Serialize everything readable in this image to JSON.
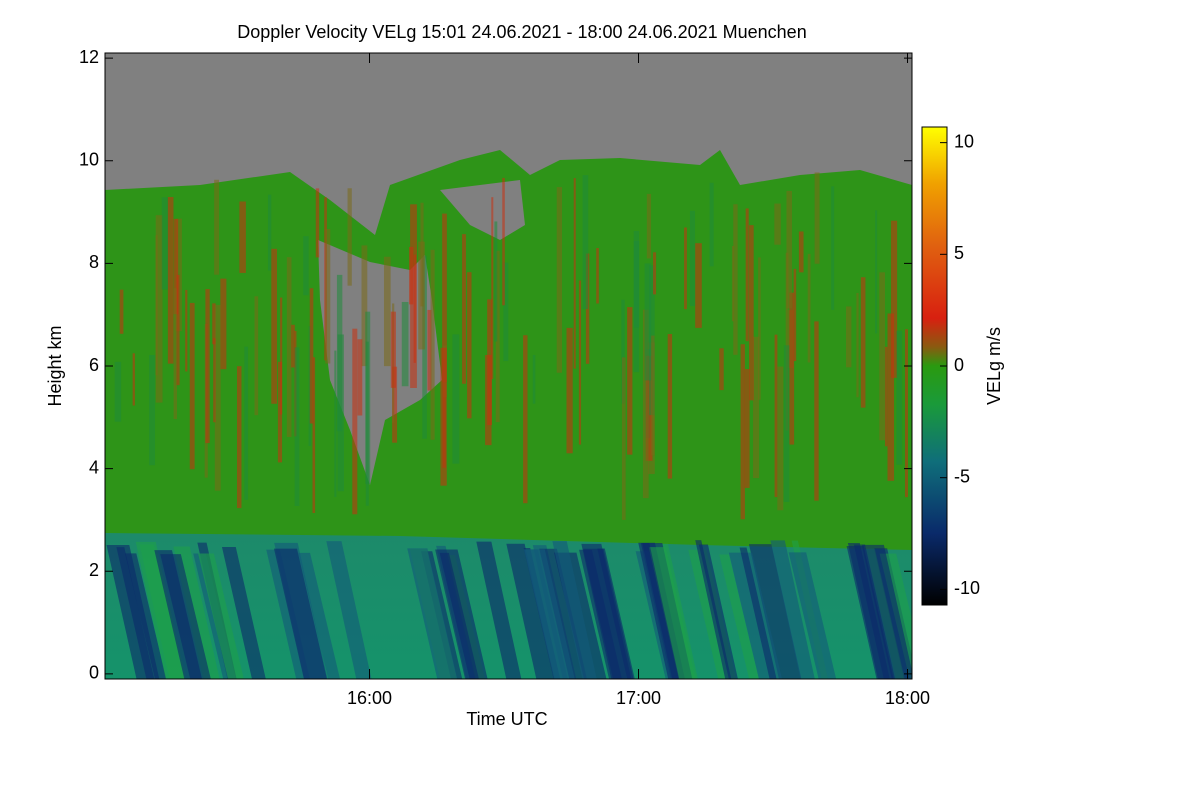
{
  "chart_data": {
    "type": "heatmap",
    "title": "Doppler Velocity VELg   15:01 24.06.2021 - 18:00 24.06.2021 Muenchen",
    "x_label": "Time UTC",
    "y_label": "Height km",
    "xlim": [
      901,
      1081
    ],
    "xticks": [
      {
        "value": 960,
        "label": "16:00"
      },
      {
        "value": 1020,
        "label": "17:00"
      },
      {
        "value": 1080,
        "label": "18:00"
      }
    ],
    "ylim": [
      -0.1,
      12.1
    ],
    "yticks": [
      0,
      2,
      4,
      6,
      8,
      10,
      12
    ],
    "colorbar": {
      "label": "VELg m/s",
      "lim": [
        -10.7,
        10.7
      ],
      "ticks": [
        10,
        5,
        0,
        -5,
        -10
      ]
    }
  }
}
